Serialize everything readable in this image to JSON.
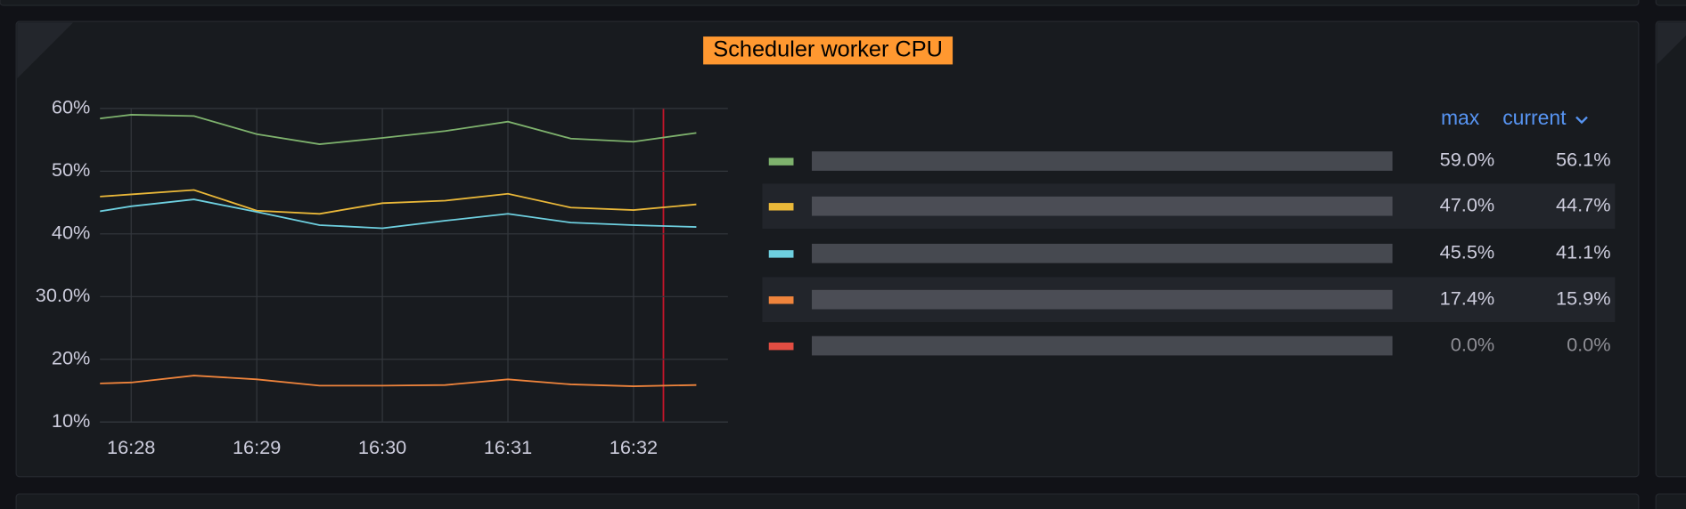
{
  "chart_data": {
    "type": "line",
    "title": "Scheduler worker CPU",
    "categories": [
      null,
      "16:28",
      null,
      "16:29",
      null,
      "16:30",
      null,
      "16:31",
      null,
      "16:32",
      null
    ],
    "ylim": [
      10,
      60
    ],
    "yticks": [
      {
        "value": 10,
        "label": "10%"
      },
      {
        "value": 20,
        "label": "20%"
      },
      {
        "value": 30,
        "label": "30.0%"
      },
      {
        "value": 40,
        "label": "40%"
      },
      {
        "value": 50,
        "label": "50%"
      },
      {
        "value": 60,
        "label": "60%"
      }
    ],
    "grid": true,
    "legend": {
      "columns": [
        "max",
        "current"
      ]
    },
    "series": [
      {
        "color": "#7eb26d",
        "values": [
          57.8,
          59.0,
          58.8,
          55.9,
          54.3,
          55.3,
          56.4,
          57.9,
          55.2,
          54.7,
          56.1
        ],
        "stats": [
          {
            "value": 59.0,
            "label": "59.0%"
          },
          {
            "value": 56.1,
            "label": "56.1%"
          }
        ]
      },
      {
        "color": "#eab839",
        "values": [
          45.6,
          46.3,
          47.0,
          43.7,
          43.2,
          44.9,
          45.3,
          46.4,
          44.2,
          43.8,
          44.7
        ],
        "stats": [
          {
            "value": 47.0,
            "label": "47.0%"
          },
          {
            "value": 44.7,
            "label": "44.7%"
          }
        ]
      },
      {
        "color": "#6ed0e0",
        "values": [
          42.8,
          44.4,
          45.5,
          43.5,
          41.4,
          40.9,
          42.1,
          43.2,
          41.8,
          41.4,
          41.1
        ],
        "stats": [
          {
            "value": 45.5,
            "label": "45.5%"
          },
          {
            "value": 41.1,
            "label": "41.1%"
          }
        ]
      },
      {
        "color": "#ef843c",
        "values": [
          16.0,
          16.3,
          17.4,
          16.8,
          15.8,
          15.8,
          15.9,
          16.8,
          16.0,
          15.7,
          15.9
        ],
        "stats": [
          {
            "value": 17.4,
            "label": "17.4%"
          },
          {
            "value": 15.9,
            "label": "15.9%"
          }
        ]
      },
      {
        "color": "#e24d42",
        "values": [
          0,
          0,
          0,
          0,
          0,
          0,
          0,
          0,
          0,
          0,
          0
        ],
        "stats": [
          {
            "value": 0,
            "label": "0.0%"
          },
          {
            "value": 0,
            "label": "0.0%"
          }
        ]
      }
    ]
  }
}
